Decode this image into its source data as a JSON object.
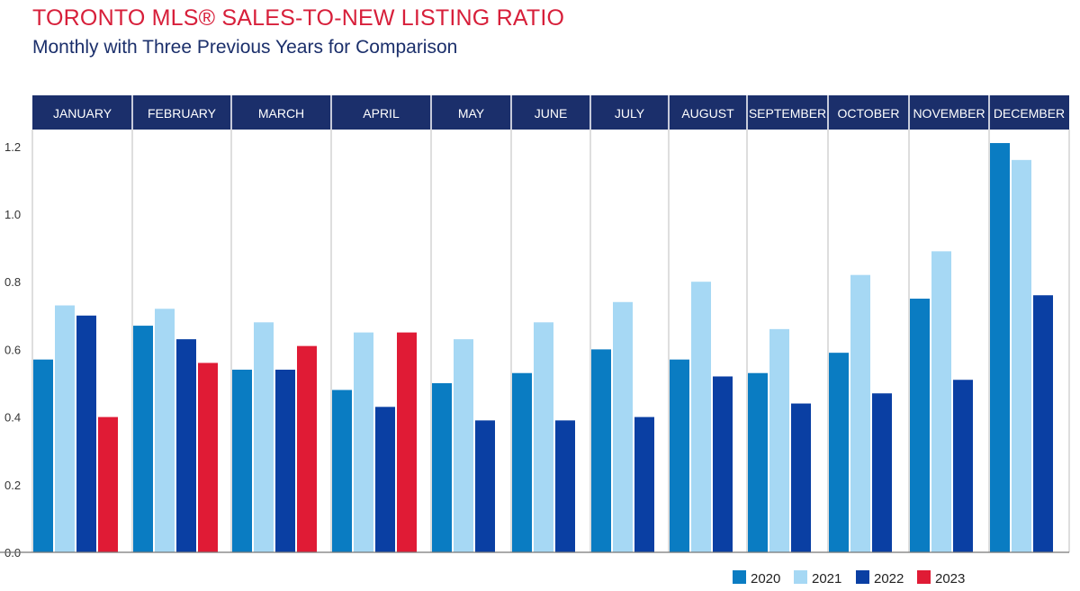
{
  "title": "TORONTO MLS® SALES-TO-NEW LISTING RATIO",
  "subtitle": "Monthly with Three Previous Years for Comparison",
  "colors": {
    "2020": "#0a7cc2",
    "2021": "#a6d8f4",
    "2022": "#0a3fa3",
    "2023": "#e01b35",
    "header": "#1b2f6b"
  },
  "chart_data": {
    "type": "bar",
    "categories": [
      "JANUARY",
      "FEBRUARY",
      "MARCH",
      "APRIL",
      "MAY",
      "JUNE",
      "JULY",
      "AUGUST",
      "SEPTEMBER",
      "OCTOBER",
      "NOVEMBER",
      "DECEMBER"
    ],
    "series": [
      {
        "name": "2020",
        "values": [
          0.57,
          0.67,
          0.54,
          0.48,
          0.5,
          0.53,
          0.6,
          0.57,
          0.53,
          0.59,
          0.75,
          1.21
        ]
      },
      {
        "name": "2021",
        "values": [
          0.73,
          0.72,
          0.68,
          0.65,
          0.63,
          0.68,
          0.74,
          0.8,
          0.66,
          0.82,
          0.89,
          1.16
        ]
      },
      {
        "name": "2022",
        "values": [
          0.7,
          0.63,
          0.54,
          0.43,
          0.39,
          0.39,
          0.4,
          0.52,
          0.44,
          0.47,
          0.51,
          0.76
        ]
      },
      {
        "name": "2023",
        "values": [
          0.4,
          0.56,
          0.61,
          0.65,
          null,
          null,
          null,
          null,
          null,
          null,
          null,
          null
        ]
      }
    ],
    "yticks": [
      0.0,
      0.2,
      0.4,
      0.6,
      0.8,
      1.0,
      1.2
    ],
    "ytick_labels": [
      "0.0",
      "0.2",
      "0.4",
      "0.6",
      "0.8",
      "1.0",
      "1.2"
    ],
    "ylim": [
      0,
      1.25
    ],
    "grid": false,
    "legend": "bottom-right"
  }
}
